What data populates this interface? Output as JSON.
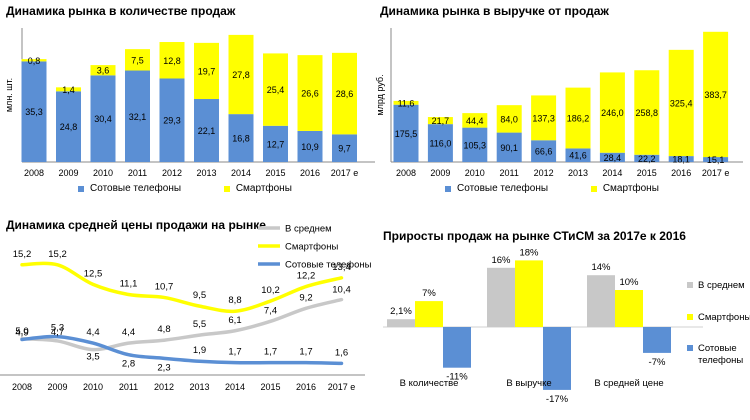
{
  "colors": {
    "blue": "#5B8FD4",
    "yellow": "#FFFF00",
    "gray": "#C8C8C8",
    "axis": "#888888"
  },
  "chart_data": [
    {
      "id": "sales-units",
      "type": "bar",
      "stacked": true,
      "title": "Динамика рынка в количестве продаж",
      "ylabel": "млн. шт.",
      "categories": [
        "2008",
        "2009",
        "2010",
        "2011",
        "2012",
        "2013",
        "2014",
        "2015",
        "2016",
        "2017 е"
      ],
      "series": [
        {
          "name": "Сотовые телефоны",
          "color": "#5B8FD4",
          "values": [
            35.3,
            24.8,
            30.4,
            32.1,
            29.3,
            22.1,
            16.8,
            12.7,
            10.9,
            9.7
          ],
          "labels": [
            "35,3",
            "24,8",
            "30,4",
            "32,1",
            "29,3",
            "22,1",
            "16,8",
            "12,7",
            "10,9",
            "9,7"
          ]
        },
        {
          "name": "Смартфоны",
          "color": "#FFFF00",
          "values": [
            0.8,
            1.4,
            3.6,
            7.5,
            12.8,
            19.7,
            27.8,
            25.4,
            26.6,
            28.6
          ],
          "labels": [
            "0,8",
            "1,4",
            "3,6",
            "7,5",
            "12,8",
            "19,7",
            "27,8",
            "25,4",
            "26,6",
            "28,6"
          ]
        }
      ],
      "legend_position": "bottom"
    },
    {
      "id": "sales-revenue",
      "type": "bar",
      "stacked": true,
      "title": "Динамика рынка в выручке от продаж",
      "ylabel": "млрд руб.",
      "categories": [
        "2008",
        "2009",
        "2010",
        "2011",
        "2012",
        "2013",
        "2014",
        "2015",
        "2016",
        "2017 е"
      ],
      "series": [
        {
          "name": "Сотовые телефоны",
          "color": "#5B8FD4",
          "values": [
            175.5,
            116.0,
            105.3,
            90.1,
            66.6,
            41.6,
            28.4,
            22.2,
            18.1,
            15.1
          ],
          "labels": [
            "175,5",
            "116,0",
            "105,3",
            "90,1",
            "66,6",
            "41,6",
            "28,4",
            "22,2",
            "18,1",
            "15,1"
          ]
        },
        {
          "name": "Смартфоны",
          "color": "#FFFF00",
          "values": [
            11.6,
            21.7,
            44.4,
            84.0,
            137.3,
            186.2,
            246.0,
            258.8,
            325.4,
            383.7
          ],
          "labels": [
            "11,6",
            "21,7",
            "44,4",
            "84,0",
            "137,3",
            "186,2",
            "246,0",
            "258,8",
            "325,4",
            "383,7"
          ]
        }
      ],
      "legend_position": "bottom"
    },
    {
      "id": "avg-price",
      "type": "line",
      "title": "Динамика средней цены продажи на рынке",
      "categories": [
        "2008",
        "2009",
        "2010",
        "2011",
        "2012",
        "2013",
        "2014",
        "2015",
        "2016",
        "2017 е"
      ],
      "series": [
        {
          "name": "В среднем",
          "color": "#C8C8C8",
          "values": [
            5.0,
            4.7,
            3.5,
            4.4,
            4.8,
            5.5,
            6.1,
            7.4,
            9.2,
            10.4
          ],
          "labels": [
            "5,0",
            "4,7",
            "3,5",
            "4,4",
            "4,8",
            "5,5",
            "6,1",
            "7,4",
            "9,2",
            "10,4"
          ]
        },
        {
          "name": "Смартфоны",
          "color": "#FFFF00",
          "values": [
            15.2,
            15.2,
            12.5,
            11.1,
            10.7,
            9.5,
            8.8,
            10.2,
            12.2,
            13.4
          ],
          "labels": [
            "15,2",
            "15,2",
            "12,5",
            "11,1",
            "10,7",
            "9,5",
            "8,8",
            "10,2",
            "12,2",
            "13,4"
          ]
        },
        {
          "name": "Сотовые телефоны",
          "color": "#5B8FD4",
          "values": [
            4.9,
            5.3,
            4.4,
            2.8,
            2.3,
            1.9,
            1.7,
            1.7,
            1.7,
            1.6
          ],
          "labels": [
            "4,9",
            "5,3",
            "4,4",
            "2,8",
            "2,3",
            "1,9",
            "1,7",
            "1,7",
            "1,7",
            "1,6"
          ]
        }
      ],
      "legend_position": "top-right"
    },
    {
      "id": "growth-2017",
      "type": "bar",
      "title": "Приросты продаж на рынке СТиСМ за 2017е к 2016",
      "categories": [
        "В количестве",
        "В выручке",
        "В средней цене"
      ],
      "series": [
        {
          "name": "В среднем",
          "color": "#C8C8C8",
          "values": [
            2.1,
            16,
            14
          ],
          "labels": [
            "2,1%",
            "16%",
            "14%"
          ]
        },
        {
          "name": "Смартфоны",
          "color": "#FFFF00",
          "values": [
            7,
            18,
            10
          ],
          "labels": [
            "7%",
            "18%",
            "10%"
          ]
        },
        {
          "name": "Сотовые телефоны",
          "color": "#5B8FD4",
          "values": [
            -11,
            -17,
            -7
          ],
          "labels": [
            "-11%",
            "-17%",
            "-7%"
          ]
        }
      ],
      "legend_position": "right"
    }
  ]
}
